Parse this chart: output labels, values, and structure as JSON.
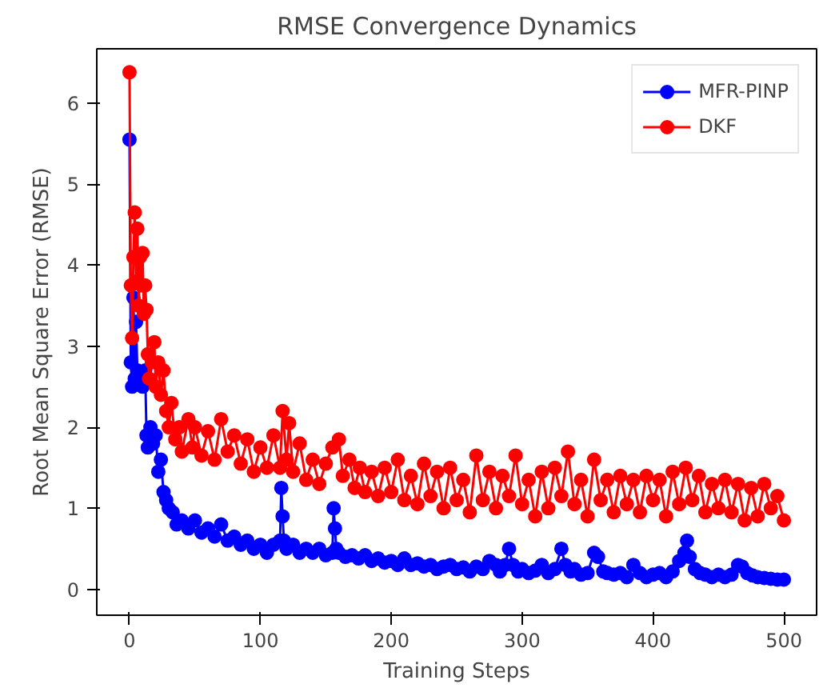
{
  "chart_data": {
    "type": "line",
    "title": "RMSE Convergence Dynamics",
    "xlabel": "Training Steps",
    "ylabel": "Root Mean Square Error (RMSE)",
    "xlim": [
      -25,
      525
    ],
    "ylim": [
      -0.32,
      6.67
    ],
    "xticks": [
      0,
      100,
      200,
      300,
      400,
      500
    ],
    "yticks": [
      0,
      1,
      2,
      3,
      4,
      5,
      6
    ],
    "grid": false,
    "legend": "top right",
    "marker": "circle",
    "line_style": "solid",
    "series": [
      {
        "name": "MFR-PINP",
        "color": "#0000ff",
        "x": [
          0,
          1,
          2,
          3,
          4,
          5,
          6,
          8,
          10,
          12,
          13,
          14,
          16,
          18,
          20,
          22,
          24,
          26,
          28,
          30,
          33,
          36,
          40,
          45,
          50,
          55,
          60,
          65,
          70,
          75,
          80,
          85,
          90,
          95,
          100,
          105,
          110,
          115,
          116,
          117,
          118,
          120,
          125,
          130,
          135,
          140,
          145,
          150,
          155,
          156,
          157,
          158,
          160,
          165,
          170,
          175,
          180,
          185,
          190,
          195,
          200,
          205,
          210,
          215,
          220,
          225,
          230,
          235,
          240,
          245,
          250,
          255,
          260,
          265,
          270,
          275,
          280,
          283,
          287,
          290,
          293,
          297,
          300,
          305,
          310,
          315,
          320,
          325,
          330,
          333,
          337,
          340,
          345,
          350,
          355,
          358,
          362,
          365,
          370,
          375,
          380,
          385,
          390,
          395,
          400,
          405,
          410,
          415,
          420,
          424,
          426,
          428,
          432,
          436,
          440,
          445,
          450,
          455,
          460,
          465,
          468,
          472,
          476,
          480,
          485,
          490,
          495,
          500
        ],
        "values": [
          5.55,
          2.8,
          2.5,
          3.6,
          2.6,
          3.3,
          2.7,
          2.6,
          2.5,
          2.7,
          1.9,
          1.75,
          2.0,
          1.8,
          1.9,
          1.45,
          1.6,
          1.2,
          1.1,
          1.0,
          0.95,
          0.8,
          0.85,
          0.75,
          0.85,
          0.7,
          0.75,
          0.65,
          0.8,
          0.6,
          0.65,
          0.55,
          0.6,
          0.5,
          0.55,
          0.45,
          0.55,
          0.6,
          1.25,
          0.9,
          0.6,
          0.5,
          0.55,
          0.45,
          0.5,
          0.45,
          0.5,
          0.42,
          0.45,
          1.0,
          0.75,
          0.5,
          0.45,
          0.4,
          0.42,
          0.38,
          0.42,
          0.35,
          0.38,
          0.33,
          0.35,
          0.3,
          0.38,
          0.3,
          0.32,
          0.28,
          0.3,
          0.25,
          0.28,
          0.3,
          0.25,
          0.27,
          0.22,
          0.28,
          0.25,
          0.35,
          0.3,
          0.22,
          0.3,
          0.5,
          0.3,
          0.22,
          0.25,
          0.2,
          0.23,
          0.3,
          0.2,
          0.25,
          0.5,
          0.3,
          0.22,
          0.25,
          0.18,
          0.2,
          0.45,
          0.4,
          0.22,
          0.2,
          0.18,
          0.2,
          0.15,
          0.3,
          0.2,
          0.15,
          0.18,
          0.2,
          0.15,
          0.22,
          0.35,
          0.45,
          0.6,
          0.4,
          0.25,
          0.2,
          0.18,
          0.15,
          0.18,
          0.15,
          0.18,
          0.3,
          0.28,
          0.2,
          0.17,
          0.15,
          0.14,
          0.13,
          0.12,
          0.12
        ]
      },
      {
        "name": "DKF",
        "color": "#ff0000",
        "x": [
          0,
          1,
          2,
          3,
          4,
          5,
          6,
          7,
          8,
          9,
          10,
          11,
          12,
          13,
          14,
          15,
          17,
          19,
          20,
          22,
          24,
          26,
          28,
          30,
          32,
          35,
          38,
          40,
          45,
          48,
          50,
          55,
          60,
          65,
          70,
          75,
          80,
          85,
          90,
          95,
          100,
          105,
          110,
          115,
          117,
          120,
          122,
          125,
          130,
          135,
          140,
          145,
          150,
          155,
          160,
          163,
          168,
          172,
          176,
          180,
          185,
          190,
          195,
          200,
          205,
          210,
          215,
          220,
          225,
          230,
          235,
          240,
          245,
          250,
          255,
          260,
          265,
          270,
          275,
          280,
          285,
          290,
          295,
          300,
          305,
          310,
          315,
          320,
          325,
          330,
          335,
          340,
          345,
          350,
          355,
          360,
          365,
          370,
          375,
          380,
          385,
          390,
          395,
          400,
          405,
          410,
          415,
          420,
          425,
          430,
          435,
          440,
          445,
          450,
          455,
          460,
          465,
          470,
          475,
          480,
          485,
          490,
          495,
          500
        ],
        "values": [
          6.38,
          3.75,
          3.1,
          4.1,
          4.65,
          3.8,
          4.45,
          3.5,
          4.1,
          3.75,
          4.15,
          3.4,
          3.75,
          3.45,
          2.9,
          2.6,
          2.8,
          3.05,
          2.5,
          2.8,
          2.4,
          2.7,
          2.2,
          2.0,
          2.3,
          1.85,
          2.0,
          1.7,
          2.1,
          1.75,
          2.0,
          1.65,
          1.95,
          1.6,
          2.1,
          1.7,
          1.9,
          1.55,
          1.85,
          1.45,
          1.75,
          1.5,
          1.9,
          1.5,
          2.2,
          1.6,
          2.05,
          1.45,
          1.8,
          1.35,
          1.6,
          1.3,
          1.55,
          1.75,
          1.85,
          1.4,
          1.6,
          1.25,
          1.5,
          1.2,
          1.45,
          1.15,
          1.5,
          1.2,
          1.6,
          1.1,
          1.4,
          1.05,
          1.55,
          1.15,
          1.45,
          1.0,
          1.5,
          1.1,
          1.35,
          0.95,
          1.65,
          1.1,
          1.45,
          1.0,
          1.4,
          1.15,
          1.65,
          1.05,
          1.35,
          0.9,
          1.45,
          1.0,
          1.5,
          1.15,
          1.7,
          1.05,
          1.35,
          0.9,
          1.6,
          1.1,
          1.35,
          0.95,
          1.4,
          1.05,
          1.35,
          0.95,
          1.4,
          1.1,
          1.35,
          0.9,
          1.45,
          1.05,
          1.5,
          1.1,
          1.4,
          0.95,
          1.3,
          1.0,
          1.35,
          0.95,
          1.3,
          0.85,
          1.25,
          0.9,
          1.3,
          1.0,
          1.15,
          0.85
        ]
      }
    ]
  }
}
